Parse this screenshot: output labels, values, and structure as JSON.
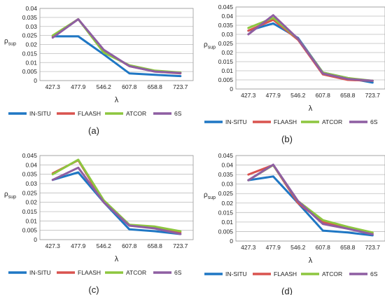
{
  "chart_data": [
    {
      "type": "line",
      "panel": "(a)",
      "x": [
        "427.3",
        "477.9",
        "546.2",
        "607.8",
        "658.8",
        "723.7"
      ],
      "xlabel": "λ",
      "ylabel": {
        "main": "ρ",
        "sub": "sup"
      },
      "ylim": [
        0,
        0.04
      ],
      "yticks": [
        "0",
        "0.005",
        "0.01",
        "0.015",
        "0.02",
        "0.025",
        "0.03",
        "0.035",
        "0.04"
      ],
      "grid": true,
      "legend": "bottom",
      "series": [
        {
          "name": "IN-SITU",
          "color": "#1f77c4",
          "values": [
            0.0245,
            0.0245,
            0.0145,
            0.004,
            0.0032,
            0.0025
          ]
        },
        {
          "name": "FLAASH",
          "color": "#d9534f",
          "values": [
            0.0245,
            0.034,
            0.0165,
            0.008,
            0.005,
            0.004
          ]
        },
        {
          "name": "ATCOR",
          "color": "#8dc63f",
          "values": [
            0.025,
            0.034,
            0.0155,
            0.0085,
            0.0055,
            0.0045
          ]
        },
        {
          "name": "6S",
          "color": "#8e5ea2",
          "values": [
            0.0238,
            0.034,
            0.017,
            0.008,
            0.005,
            0.0042
          ]
        }
      ]
    },
    {
      "type": "line",
      "panel": "(b)",
      "x": [
        "427.3",
        "477.9",
        "546.2",
        "607.8",
        "658.8",
        "723.7"
      ],
      "xlabel": "λ",
      "ylabel": {
        "main": "ρ",
        "sub": "sup"
      },
      "ylim": [
        0,
        0.045
      ],
      "yticks": [
        "0",
        "0.005",
        "0.01",
        "0.015",
        "0.02",
        "0.025",
        "0.03",
        "0.035",
        "0.04",
        "0.045"
      ],
      "grid": true,
      "legend": "bottom",
      "series": [
        {
          "name": "IN-SITU",
          "color": "#1f77c4",
          "values": [
            0.032,
            0.036,
            0.028,
            0.009,
            0.006,
            0.0035
          ]
        },
        {
          "name": "FLAASH",
          "color": "#d9534f",
          "values": [
            0.032,
            0.038,
            0.027,
            0.008,
            0.005,
            0.0045
          ]
        },
        {
          "name": "ATCOR",
          "color": "#8dc63f",
          "values": [
            0.0335,
            0.039,
            0.0275,
            0.009,
            0.006,
            0.0045
          ]
        },
        {
          "name": "6S",
          "color": "#8e5ea2",
          "values": [
            0.03,
            0.0405,
            0.0275,
            0.0085,
            0.0055,
            0.0045
          ]
        }
      ]
    },
    {
      "type": "line",
      "panel": "(c)",
      "x": [
        "427.3",
        "477.9",
        "546.2",
        "607.8",
        "658.8",
        "723.7"
      ],
      "xlabel": "λ",
      "ylabel": {
        "main": "ρ",
        "sub": "sup"
      },
      "ylim": [
        0,
        0.045
      ],
      "yticks": [
        "0",
        "0.005",
        "0.01",
        "0.015",
        "0.02",
        "0.025",
        "0.03",
        "0.035",
        "0.04",
        "0.045"
      ],
      "grid": true,
      "legend": "bottom",
      "series": [
        {
          "name": "IN-SITU",
          "color": "#1f77c4",
          "values": [
            0.032,
            0.036,
            0.02,
            0.0055,
            0.0045,
            0.003
          ]
        },
        {
          "name": "FLAASH",
          "color": "#d9534f",
          "values": [
            0.0355,
            0.0425,
            0.02,
            0.0075,
            0.0065,
            0.004
          ]
        },
        {
          "name": "ATCOR",
          "color": "#8dc63f",
          "values": [
            0.035,
            0.0428,
            0.021,
            0.008,
            0.007,
            0.0045
          ]
        },
        {
          "name": "6S",
          "color": "#8e5ea2",
          "values": [
            0.032,
            0.0385,
            0.02,
            0.0075,
            0.006,
            0.003
          ]
        }
      ]
    },
    {
      "type": "line",
      "panel": "(d)",
      "x": [
        "427.3",
        "477.9",
        "546.2",
        "607.8",
        "658.8",
        "723.7"
      ],
      "xlabel": "λ",
      "ylabel": {
        "main": "ρ",
        "sub": "sup"
      },
      "ylim": [
        0,
        0.045
      ],
      "yticks": [
        "0",
        "0.005",
        "0.01",
        "0.015",
        "0.02",
        "0.025",
        "0.03",
        "0.035",
        "0.04",
        "0.045"
      ],
      "grid": true,
      "legend": "bottom",
      "series": [
        {
          "name": "IN-SITU",
          "color": "#1f77c4",
          "values": [
            0.032,
            0.034,
            0.02,
            0.0055,
            0.0045,
            0.003
          ]
        },
        {
          "name": "FLAASH",
          "color": "#d9534f",
          "values": [
            0.035,
            0.04,
            0.02,
            0.01,
            0.007,
            0.004
          ]
        },
        {
          "name": "ATCOR",
          "color": "#8dc63f",
          "values": [
            0.032,
            0.04,
            0.021,
            0.011,
            0.0075,
            0.0045
          ]
        },
        {
          "name": "6S",
          "color": "#8e5ea2",
          "values": [
            0.032,
            0.0402,
            0.021,
            0.009,
            0.0065,
            0.0035
          ]
        }
      ]
    }
  ]
}
